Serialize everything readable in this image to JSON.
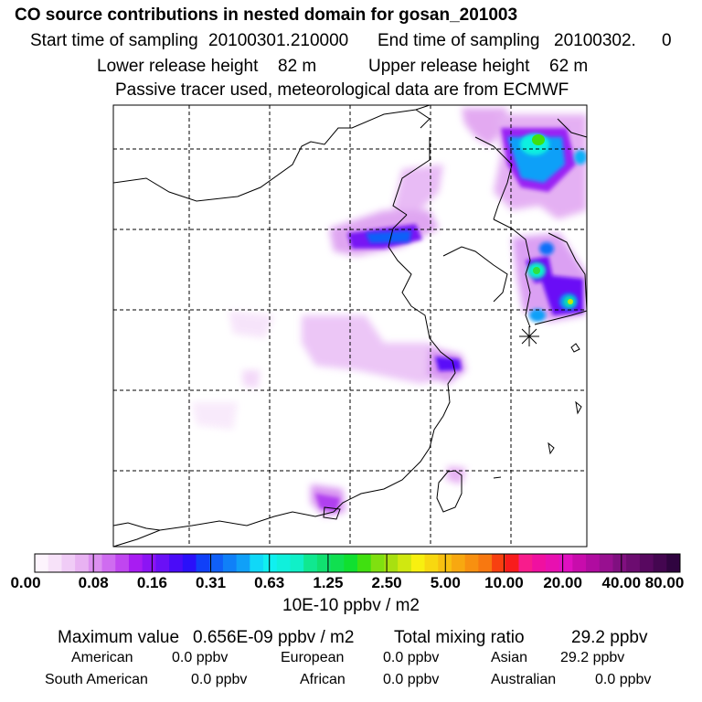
{
  "header": {
    "title": "CO  source contributions in nested domain for gosan_201003",
    "start_label": "Start time of sampling",
    "start_value": "20100301.210000",
    "end_label": "End time of sampling",
    "end_value": "20100302.",
    "end_extra": "0",
    "lower_label": "Lower release height",
    "lower_value": "82 m",
    "upper_label": "Upper release height",
    "upper_value": "62 m",
    "tracer_note": "Passive tracer used, meteorological data are from ECMWF"
  },
  "colorbar": {
    "labels": [
      "0.00",
      "0.08",
      "0.16",
      "0.31",
      "0.63",
      "1.25",
      "2.50",
      "5.00",
      "10.00",
      "20.00",
      "40.00",
      "80.00"
    ],
    "colors": [
      "#fdf4fd",
      "#f7e2f9",
      "#f0ccf6",
      "#e8b2f2",
      "#dc90f0",
      "#cf6cf0",
      "#c046f0",
      "#a81cf2",
      "#8c14f4",
      "#6a10f6",
      "#4a0cf8",
      "#2a10fa",
      "#1040f8",
      "#1060f8",
      "#1080f8",
      "#10a0f8",
      "#10d8f8",
      "#10f0f0",
      "#10f0dc",
      "#10f0c8",
      "#10e890",
      "#10e070",
      "#10e050",
      "#10e030",
      "#40e010",
      "#80e010",
      "#a8e010",
      "#d0e810",
      "#f8f010",
      "#f8d810",
      "#f8c010",
      "#f8a810",
      "#f89010",
      "#f87810",
      "#f84010",
      "#f81c1c",
      "#f81c8c",
      "#f010a0",
      "#e810b0",
      "#e010c0",
      "#c80cac",
      "#b00ca0",
      "#981090",
      "#801080",
      "#6c0c70",
      "#580860",
      "#440650",
      "#300440"
    ],
    "unit": "10E-10 ppbv / m2"
  },
  "stats": {
    "max_label": "Maximum value",
    "max_value": "0.656E-09 ppbv / m2",
    "total_label": "Total mixing ratio",
    "total_value": "29.2 ppbv",
    "regions": [
      {
        "name": "American",
        "value": "0.0 ppbv"
      },
      {
        "name": "European",
        "value": "0.0 ppbv"
      },
      {
        "name": "Asian",
        "value": "29.2 ppbv"
      },
      {
        "name": "South American",
        "value": "0.0 ppbv"
      },
      {
        "name": "African",
        "value": "0.0 ppbv"
      },
      {
        "name": "Australian",
        "value": "0.0 ppbv"
      }
    ]
  }
}
